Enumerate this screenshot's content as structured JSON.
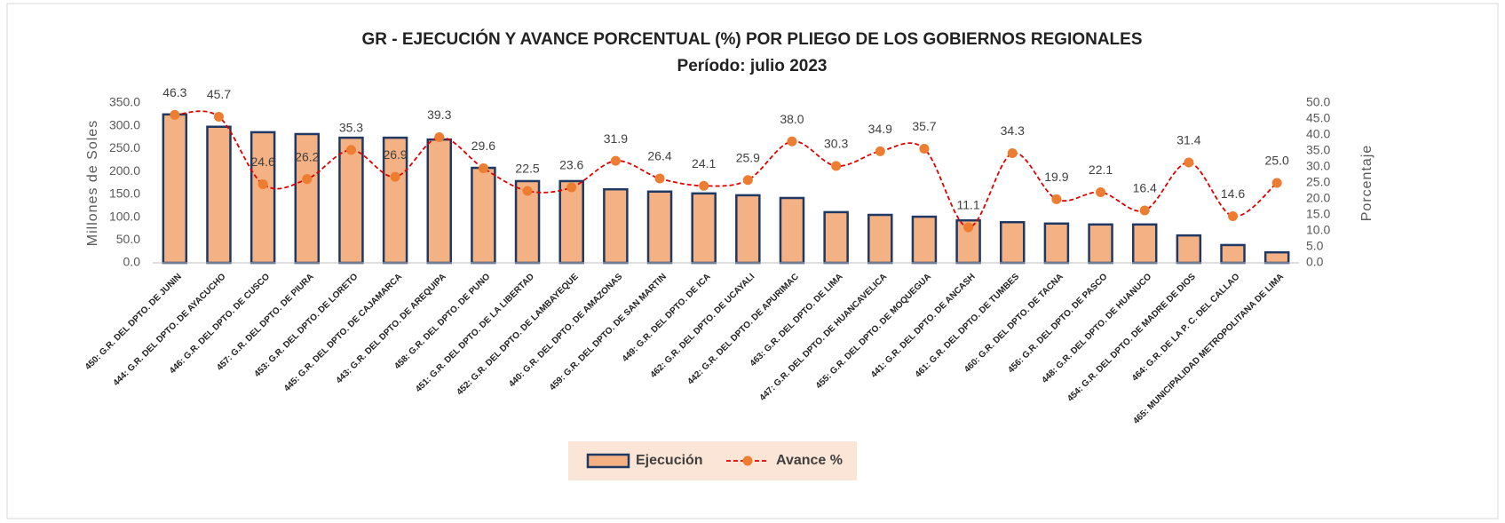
{
  "chart_data": {
    "type": "bar_line",
    "title": "GR - EJECUCIÓN  Y AVANCE PORCENTUAL (%) POR PLIEGO DE LOS GOBIERNOS REGIONALES",
    "subtitle": "Período:  julio 2023",
    "ylabel": "Millones de Soles",
    "y2label": "Porcentaje",
    "categories": [
      "450: G.R. DEL DPTO. DE JUNIN",
      "444: G.R. DEL DPTO. DE AYACUCHO",
      "446: G.R. DEL DPTO. DE CUSCO",
      "457: G.R. DEL DPTO. DE PIURA",
      "453: G.R. DEL DPTO. DE LORETO",
      "445: G.R. DEL DPTO. DE CAJAMARCA",
      "443: G.R. DEL DPTO. DE AREQUIPA",
      "458: G.R. DEL DPTO. DE PUNO",
      "451: G.R. DEL DPTO. DE LA LIBERTAD",
      "452: G.R. DEL DPTO. DE LAMBAYEQUE",
      "440: G.R. DEL DPTO. DE AMAZONAS",
      "459: G.R. DEL DPTO. DE SAN MARTIN",
      "449: G.R. DEL DPTO. DE ICA",
      "462: G.R. DEL DPTO. DE UCAYALI",
      "442: G.R. DEL DPTO. DE APURIMAC",
      "463: G.R. DEL DPTO. DE LIMA",
      "447: G.R. DEL DPTO. DE HUANCAVELICA",
      "455: G.R. DEL DPTO. DE MOQUEGUA",
      "441: G.R. DEL DPTO. DE ANCASH",
      "461: G.R. DEL DPTO. DE TUMBES",
      "460: G.R. DEL DPTO. DE TACNA",
      "456: G.R. DEL DPTO. DE PASCO",
      "448: G.R. DEL DPTO. DE HUANUCO",
      "454: G.R. DEL DPTO. DE MADRE DE DIOS",
      "464: G.R. DE LA P. C. DEL CALLAO",
      "465: MUNICIPALIDAD METROPOLITANA DE LIMA"
    ],
    "series": [
      {
        "name": "Ejecución",
        "type": "bar",
        "color": "#f4b183",
        "edgecolor": "#1f3864",
        "values": [
          325,
          298,
          286,
          282,
          274,
          274,
          270,
          208,
          179,
          179,
          161,
          156,
          152,
          148,
          142,
          111,
          105,
          101,
          93,
          89,
          86,
          84,
          84,
          60,
          39,
          23
        ]
      },
      {
        "name": "Avance %",
        "type": "line",
        "axis": "y2",
        "color": "#e00000",
        "marker_color": "#ed7d31",
        "values": [
          46.3,
          45.7,
          24.6,
          26.2,
          35.3,
          26.9,
          39.3,
          29.6,
          22.5,
          23.6,
          31.9,
          26.4,
          24.1,
          25.9,
          38.0,
          30.3,
          34.9,
          35.7,
          11.1,
          34.3,
          19.9,
          22.1,
          16.4,
          31.4,
          14.6,
          25.0
        ],
        "value_labels": [
          "46.3",
          "45.7",
          "24.6",
          "26.2",
          "35.3",
          "26.9",
          "39.3",
          "29.6",
          "22.5",
          "23.6",
          "31.9",
          "26.4",
          "24.1",
          "25.9",
          "38.0",
          "30.3",
          "34.9",
          "35.7",
          "11.1",
          "34.3",
          "19.9",
          "22.1",
          "16.4",
          "31.4",
          "14.6",
          "25.0"
        ]
      }
    ],
    "ylim": [
      0,
      350
    ],
    "yticks": [
      {
        "value": 0,
        "label": "0.0"
      },
      {
        "value": 50,
        "label": "50.0"
      },
      {
        "value": 100,
        "label": "100.0"
      },
      {
        "value": 150,
        "label": "150.0"
      },
      {
        "value": 200,
        "label": "200.0"
      },
      {
        "value": 250,
        "label": "250.0"
      },
      {
        "value": 300,
        "label": "300.0"
      },
      {
        "value": 350,
        "label": "350.0"
      }
    ],
    "y2lim": [
      0,
      50
    ],
    "y2ticks": [
      {
        "value": 0,
        "label": "0.0"
      },
      {
        "value": 5,
        "label": "5.0"
      },
      {
        "value": 10,
        "label": "10.0"
      },
      {
        "value": 15,
        "label": "15.0"
      },
      {
        "value": 20,
        "label": "20.0"
      },
      {
        "value": 25,
        "label": "25.0"
      },
      {
        "value": 30,
        "label": "30.0"
      },
      {
        "value": 35,
        "label": "35.0"
      },
      {
        "value": 40,
        "label": "40.0"
      },
      {
        "value": 45,
        "label": "45.0"
      },
      {
        "value": 50,
        "label": "50.0"
      }
    ],
    "grid": false,
    "legend": "bottom"
  }
}
